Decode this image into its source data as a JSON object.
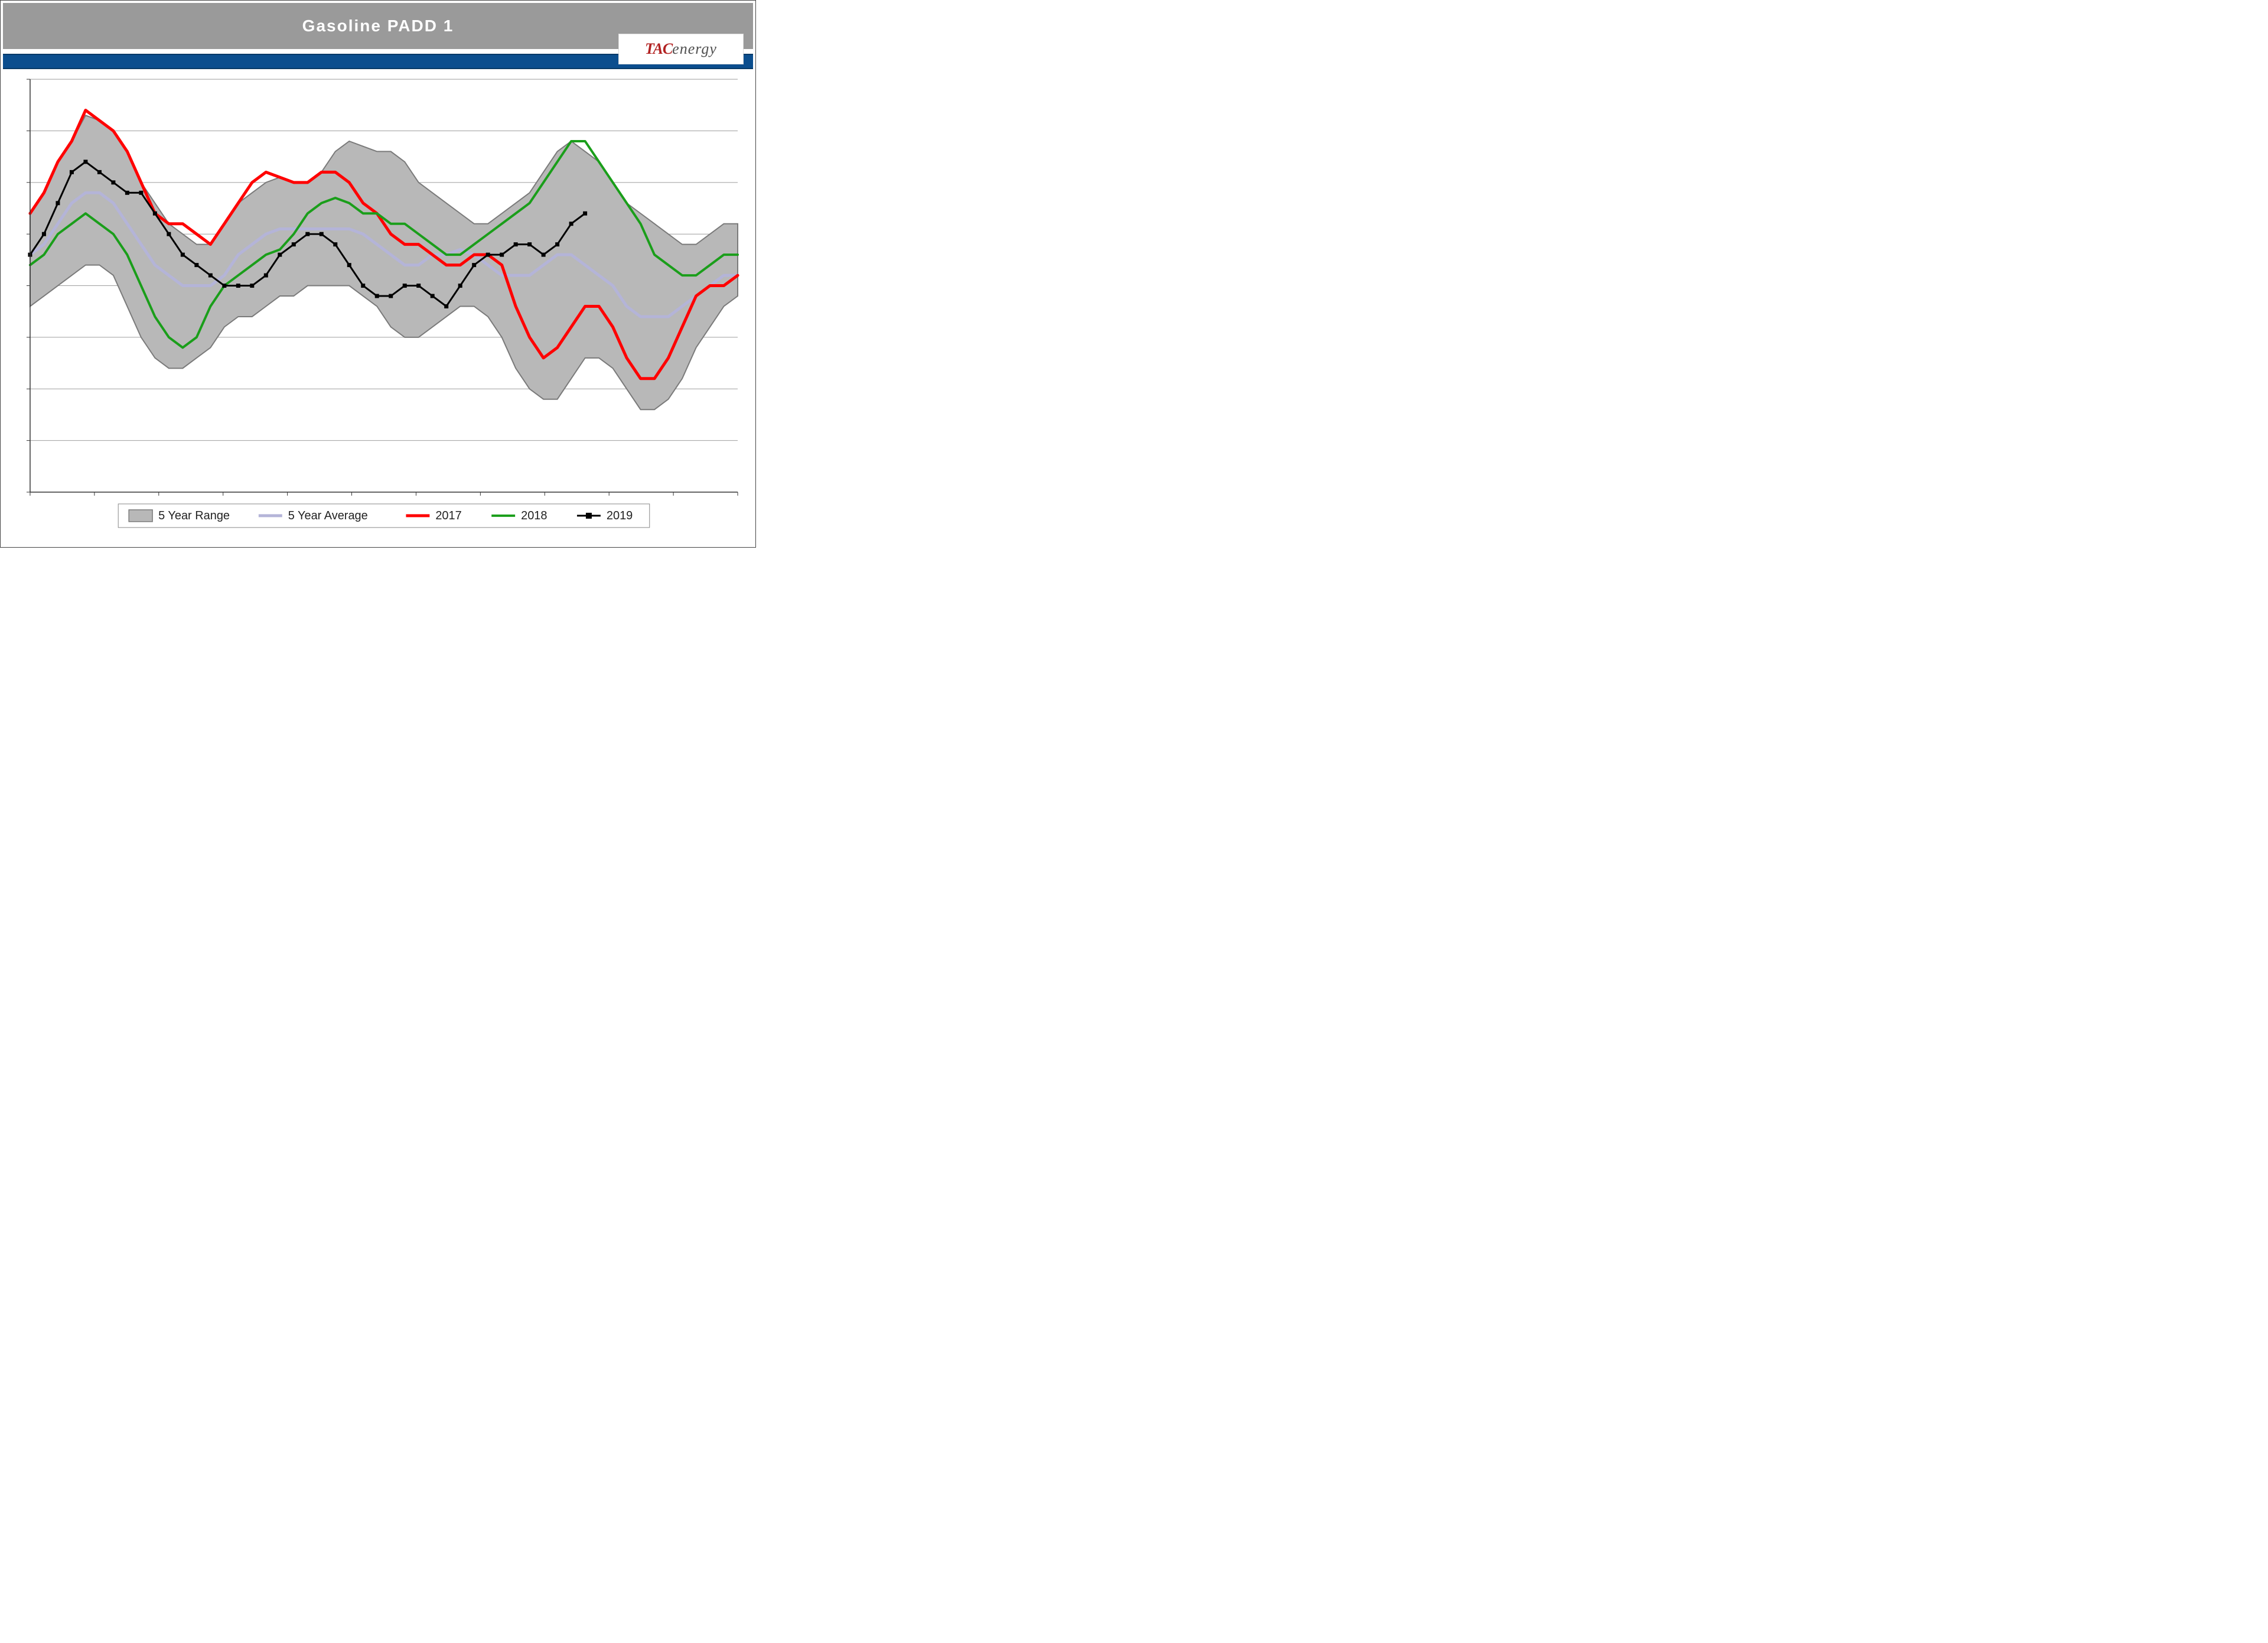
{
  "title": "Gasoline PADD 1",
  "logo": {
    "left": "TAC",
    "right": "energy"
  },
  "colors": {
    "title_bar_bg": "#9a9a9a",
    "title_text": "#ffffff",
    "blue_strip": "#0b4e8e",
    "range_fill": "#b8b8b8",
    "range_stroke": "#7a7a7a",
    "five_year_avg": "#b4b4d8",
    "series_2017": "#ff0000",
    "series_2018": "#1a9e1a",
    "series_2019": "#000000",
    "marker_2019_fill": "#000000",
    "grid": "#9e9e9e",
    "axis": "#333333",
    "background": "#ffffff"
  },
  "chart": {
    "type": "line-with-band",
    "n_points": 52,
    "ylim": [
      40,
      80
    ],
    "ytick_step": 5,
    "gridlines_y": [
      45,
      50,
      55,
      60,
      65,
      70,
      75,
      80
    ],
    "x_ticks_count": 12,
    "five_year_range_upper": [
      67,
      69,
      72,
      74,
      76.5,
      76,
      75,
      73,
      70,
      68,
      66,
      65,
      64,
      64,
      66,
      68,
      69,
      70,
      70.5,
      70,
      70,
      71,
      73,
      74,
      73.5,
      73,
      73,
      72,
      70,
      69,
      68,
      67,
      66,
      66,
      67,
      68,
      69,
      71,
      73,
      74,
      73,
      72,
      70,
      68,
      67,
      66,
      65,
      64,
      64,
      65,
      66,
      66
    ],
    "five_year_range_lower": [
      58,
      59,
      60,
      61,
      62,
      62,
      61,
      58,
      55,
      53,
      52,
      52,
      53,
      54,
      56,
      57,
      57,
      58,
      59,
      59,
      60,
      60,
      60,
      60,
      59,
      58,
      56,
      55,
      55,
      56,
      57,
      58,
      58,
      57,
      55,
      52,
      50,
      49,
      49,
      51,
      53,
      53,
      52,
      50,
      48,
      48,
      49,
      51,
      54,
      56,
      58,
      59
    ],
    "five_year_avg": [
      63,
      64,
      66,
      68,
      69,
      69,
      68,
      66,
      64,
      62,
      61,
      60,
      60,
      60,
      61,
      63,
      64,
      65,
      65.5,
      65.5,
      65.5,
      65.5,
      65.5,
      65.5,
      65,
      64,
      63,
      62,
      62,
      63,
      63,
      63.5,
      63,
      62,
      61,
      61,
      61,
      62,
      63,
      63,
      62,
      61,
      60,
      58,
      57,
      57,
      57,
      58,
      59,
      60,
      61,
      61
    ],
    "series_2017": [
      67,
      69,
      72,
      74,
      77,
      76,
      75,
      73,
      70,
      67,
      66,
      66,
      65,
      64,
      66,
      68,
      70,
      71,
      70.5,
      70,
      70,
      71,
      71,
      70,
      68,
      67,
      65,
      64,
      64,
      63,
      62,
      62,
      63,
      63,
      62,
      58,
      55,
      53,
      54,
      56,
      58,
      58,
      56,
      53,
      51,
      51,
      53,
      56,
      59,
      60,
      60,
      61
    ],
    "series_2018": [
      62,
      63,
      65,
      66,
      67,
      66,
      65,
      63,
      60,
      57,
      55,
      54,
      55,
      58,
      60,
      61,
      62,
      63,
      63.5,
      65,
      67,
      68,
      68.5,
      68,
      67,
      67,
      66,
      66,
      65,
      64,
      63,
      63,
      64,
      65,
      66,
      67,
      68,
      70,
      72,
      74,
      74,
      72,
      70,
      68,
      66,
      63,
      62,
      61,
      61,
      62,
      63,
      63
    ],
    "series_2019": [
      63,
      65,
      68,
      71,
      72,
      71,
      70,
      69,
      69,
      67,
      65,
      63,
      62,
      61,
      60,
      60,
      60,
      61,
      63,
      64,
      65,
      65,
      64,
      62,
      60,
      59,
      59,
      60,
      60,
      59,
      58,
      60,
      62,
      63,
      63,
      64,
      64,
      63,
      64,
      66,
      67
    ],
    "series_2019_has_markers": true,
    "line_widths": {
      "range_stroke": 2,
      "avg": 5,
      "2017": 5,
      "2018": 4,
      "2019": 3
    },
    "marker_size_2019": 6
  },
  "legend": {
    "items": [
      {
        "key": "range",
        "label": "5 Year Range"
      },
      {
        "key": "avg",
        "label": "5 Year Average"
      },
      {
        "key": "2017",
        "label": "2017"
      },
      {
        "key": "2018",
        "label": "2018"
      },
      {
        "key": "2019",
        "label": "2019"
      }
    ]
  }
}
